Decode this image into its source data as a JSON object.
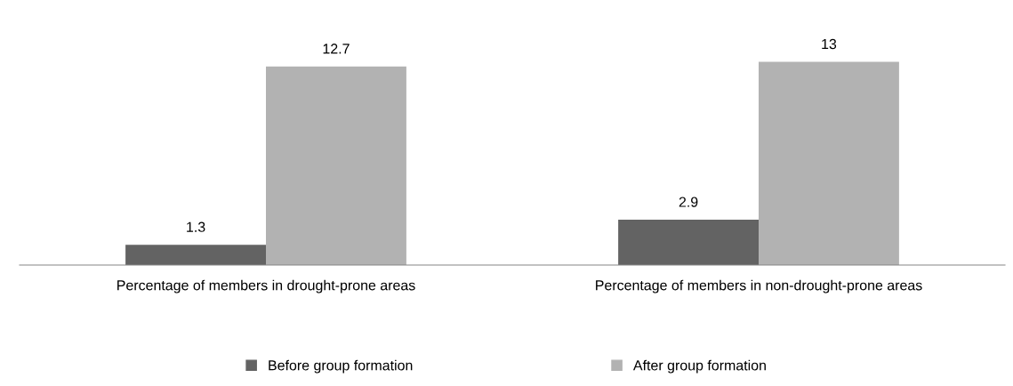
{
  "chart_data": {
    "type": "bar",
    "categories": [
      "Percentage of members in drought-prone areas",
      "Percentage of members in non-drought-prone areas"
    ],
    "series": [
      {
        "name": "Before group formation",
        "color": "#636363",
        "values": [
          1.3,
          2.9
        ]
      },
      {
        "name": "After group formation",
        "color": "#b2b2b2",
        "values": [
          12.7,
          13
        ]
      }
    ],
    "data_labels": true,
    "grid": false,
    "legend": "bottom"
  }
}
